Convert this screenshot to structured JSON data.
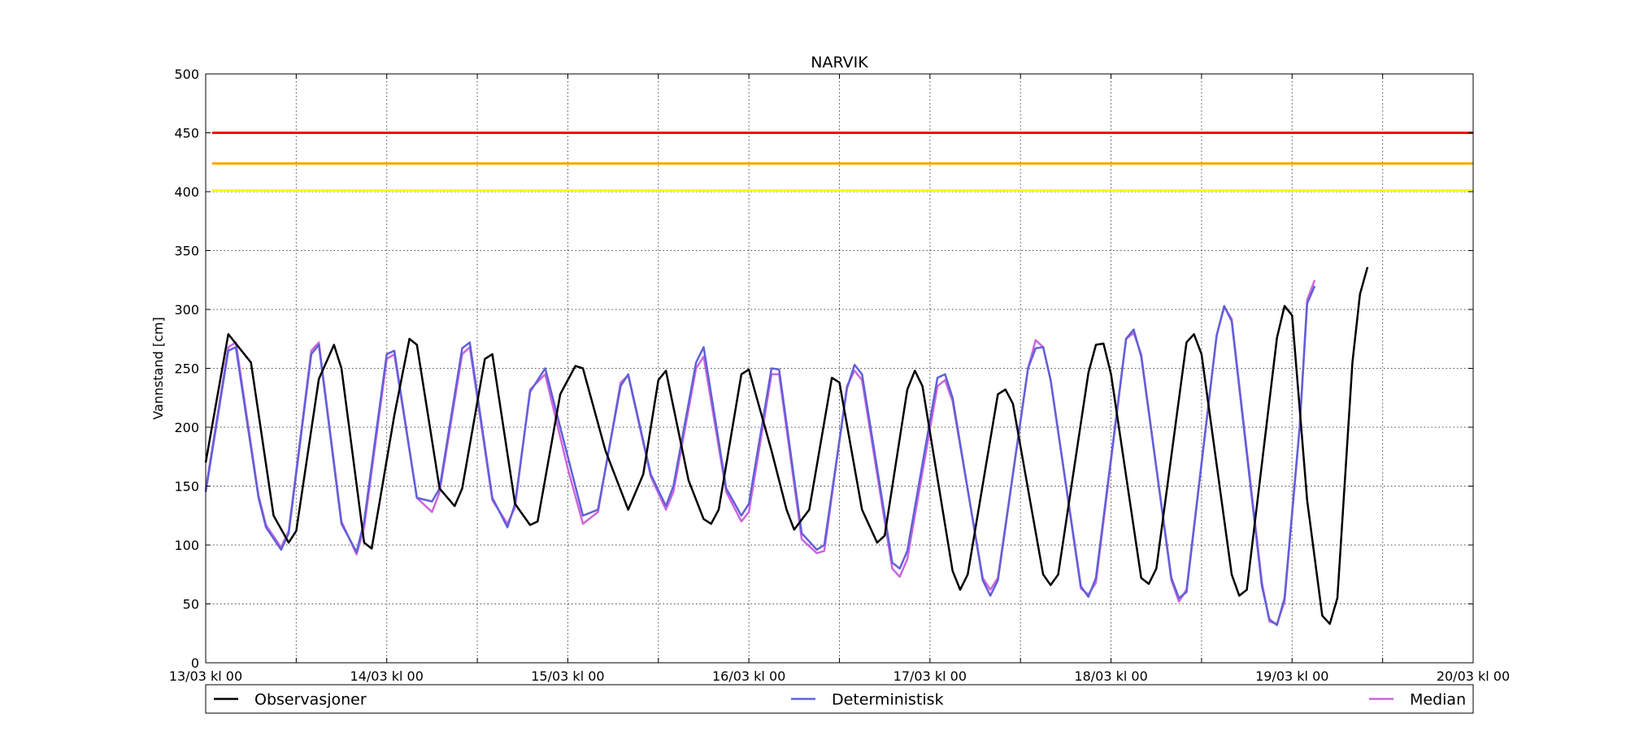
{
  "chart_data": {
    "type": "line",
    "title": "NARVIK",
    "ylabel": "Vannstand [cm]",
    "xlabel": "",
    "xlim": [
      "13/03 00:00",
      "20/03 00:00"
    ],
    "ylim": [
      0,
      500
    ],
    "yticks": [
      0,
      50,
      100,
      150,
      200,
      250,
      300,
      350,
      400,
      450,
      500
    ],
    "xtick_labels": [
      "13/03 kl 00",
      "14/03 kl 00",
      "15/03 kl 00",
      "16/03 kl 00",
      "17/03 kl 00",
      "18/03 kl 00",
      "19/03 kl 00",
      "20/03 kl 00"
    ],
    "grid": true,
    "legend_position": "bottom",
    "thresholds": [
      {
        "value": 450,
        "color": "#ff0000"
      },
      {
        "value": 424,
        "color": "#ffa500"
      },
      {
        "value": 401,
        "color": "#ffff00"
      }
    ],
    "series": [
      {
        "name": "Observasjoner",
        "color": "#000000",
        "points": [
          [
            "13/03 00:00",
            170
          ],
          [
            "13/03 03:00",
            279
          ],
          [
            "13/03 06:00",
            255
          ],
          [
            "13/03 09:00",
            125
          ],
          [
            "13/03 11:00",
            102
          ],
          [
            "13/03 12:00",
            112
          ],
          [
            "13/03 15:00",
            241
          ],
          [
            "13/03 17:00",
            270
          ],
          [
            "13/03 18:00",
            250
          ],
          [
            "13/03 21:00",
            102
          ],
          [
            "13/03 22:00",
            97
          ],
          [
            "14/03 01:00",
            210
          ],
          [
            "14/03 03:00",
            275
          ],
          [
            "14/03 04:00",
            270
          ],
          [
            "14/03 07:00",
            148
          ],
          [
            "14/03 09:00",
            133
          ],
          [
            "14/03 10:00",
            148
          ],
          [
            "14/03 13:00",
            258
          ],
          [
            "14/03 14:00",
            262
          ],
          [
            "14/03 17:00",
            135
          ],
          [
            "14/03 19:00",
            117
          ],
          [
            "14/03 20:00",
            120
          ],
          [
            "14/03 23:00",
            228
          ],
          [
            "15/03 01:00",
            252
          ],
          [
            "15/03 02:00",
            250
          ],
          [
            "15/03 05:00",
            180
          ],
          [
            "15/03 08:00",
            130
          ],
          [
            "15/03 10:00",
            160
          ],
          [
            "15/03 12:00",
            240
          ],
          [
            "15/03 13:00",
            248
          ],
          [
            "15/03 16:00",
            155
          ],
          [
            "15/03 18:00",
            122
          ],
          [
            "15/03 19:00",
            118
          ],
          [
            "15/03 20:00",
            130
          ],
          [
            "15/03 23:00",
            245
          ],
          [
            "16/03 00:00",
            249
          ],
          [
            "16/03 03:00",
            180
          ],
          [
            "16/03 05:00",
            130
          ],
          [
            "16/03 06:00",
            113
          ],
          [
            "16/03 08:00",
            130
          ],
          [
            "16/03 11:00",
            242
          ],
          [
            "16/03 12:00",
            238
          ],
          [
            "16/03 15:00",
            130
          ],
          [
            "16/03 17:00",
            102
          ],
          [
            "16/03 18:00",
            108
          ],
          [
            "16/03 21:00",
            232
          ],
          [
            "16/03 22:00",
            248
          ],
          [
            "16/03 23:00",
            235
          ],
          [
            "17/03 03:00",
            78
          ],
          [
            "17/03 04:00",
            62
          ],
          [
            "17/03 05:00",
            75
          ],
          [
            "17/03 09:00",
            228
          ],
          [
            "17/03 10:00",
            232
          ],
          [
            "17/03 11:00",
            220
          ],
          [
            "17/03 15:00",
            75
          ],
          [
            "17/03 16:00",
            66
          ],
          [
            "17/03 17:00",
            75
          ],
          [
            "17/03 21:00",
            246
          ],
          [
            "17/03 22:00",
            270
          ],
          [
            "17/03 23:00",
            271
          ],
          [
            "18/03 00:00",
            245
          ],
          [
            "18/03 04:00",
            72
          ],
          [
            "18/03 05:00",
            67
          ],
          [
            "18/03 06:00",
            80
          ],
          [
            "18/03 10:00",
            272
          ],
          [
            "18/03 11:00",
            279
          ],
          [
            "18/03 12:00",
            262
          ],
          [
            "18/03 16:00",
            75
          ],
          [
            "18/03 17:00",
            57
          ],
          [
            "18/03 18:00",
            62
          ],
          [
            "18/03 22:00",
            276
          ],
          [
            "18/03 23:00",
            303
          ],
          [
            "19/03 00:00",
            295
          ],
          [
            "19/03 02:00",
            138
          ],
          [
            "19/03 04:00",
            40
          ],
          [
            "19/03 05:00",
            33
          ],
          [
            "19/03 06:00",
            55
          ],
          [
            "19/03 08:00",
            255
          ],
          [
            "19/03 09:00",
            313
          ],
          [
            "19/03 10:00",
            336
          ]
        ]
      },
      {
        "name": "Deterministisk",
        "color": "#6060d8",
        "points": [
          [
            "13/03 00:00",
            145
          ],
          [
            "13/03 03:00",
            265
          ],
          [
            "13/03 04:00",
            268
          ],
          [
            "13/03 07:00",
            140
          ],
          [
            "13/03 08:00",
            115
          ],
          [
            "13/03 10:00",
            96
          ],
          [
            "13/03 11:00",
            110
          ],
          [
            "13/03 14:00",
            262
          ],
          [
            "13/03 15:00",
            270
          ],
          [
            "13/03 18:00",
            118
          ],
          [
            "13/03 20:00",
            94
          ],
          [
            "13/03 21:00",
            120
          ],
          [
            "14/03 00:00",
            262
          ],
          [
            "14/03 01:00",
            265
          ],
          [
            "14/03 04:00",
            140
          ],
          [
            "14/03 06:00",
            137
          ],
          [
            "14/03 07:00",
            148
          ],
          [
            "14/03 10:00",
            267
          ],
          [
            "14/03 11:00",
            272
          ],
          [
            "14/03 14:00",
            140
          ],
          [
            "14/03 16:00",
            115
          ],
          [
            "14/03 17:00",
            135
          ],
          [
            "14/03 19:00",
            230
          ],
          [
            "14/03 21:00",
            250
          ],
          [
            "15/03 00:00",
            175
          ],
          [
            "15/03 02:00",
            125
          ],
          [
            "15/03 04:00",
            130
          ],
          [
            "15/03 07:00",
            235
          ],
          [
            "15/03 08:00",
            245
          ],
          [
            "15/03 11:00",
            160
          ],
          [
            "15/03 13:00",
            133
          ],
          [
            "15/03 14:00",
            150
          ],
          [
            "15/03 17:00",
            255
          ],
          [
            "15/03 18:00",
            268
          ],
          [
            "15/03 21:00",
            148
          ],
          [
            "15/03 23:00",
            125
          ],
          [
            "16/03 00:00",
            135
          ],
          [
            "16/03 03:00",
            250
          ],
          [
            "16/03 04:00",
            249
          ],
          [
            "16/03 07:00",
            110
          ],
          [
            "16/03 09:00",
            96
          ],
          [
            "16/03 10:00",
            100
          ],
          [
            "16/03 13:00",
            233
          ],
          [
            "16/03 14:00",
            253
          ],
          [
            "16/03 15:00",
            245
          ],
          [
            "16/03 19:00",
            85
          ],
          [
            "16/03 20:00",
            80
          ],
          [
            "16/03 21:00",
            95
          ],
          [
            "17/03 01:00",
            242
          ],
          [
            "17/03 02:00",
            245
          ],
          [
            "17/03 03:00",
            225
          ],
          [
            "17/03 07:00",
            70
          ],
          [
            "17/03 08:00",
            57
          ],
          [
            "17/03 09:00",
            70
          ],
          [
            "17/03 13:00",
            250
          ],
          [
            "17/03 14:00",
            267
          ],
          [
            "17/03 15:00",
            268
          ],
          [
            "17/03 16:00",
            240
          ],
          [
            "17/03 20:00",
            65
          ],
          [
            "17/03 21:00",
            56
          ],
          [
            "17/03 22:00",
            72
          ],
          [
            "18/03 02:00",
            275
          ],
          [
            "18/03 03:00",
            283
          ],
          [
            "18/03 04:00",
            260
          ],
          [
            "18/03 08:00",
            72
          ],
          [
            "18/03 09:00",
            55
          ],
          [
            "18/03 10:00",
            60
          ],
          [
            "18/03 14:00",
            278
          ],
          [
            "18/03 15:00",
            303
          ],
          [
            "18/03 16:00",
            290
          ],
          [
            "18/03 20:00",
            65
          ],
          [
            "18/03 21:00",
            37
          ],
          [
            "18/03 22:00",
            32
          ],
          [
            "18/03 23:00",
            55
          ],
          [
            "19/03 01:00",
            200
          ],
          [
            "19/03 02:00",
            305
          ],
          [
            "19/03 03:00",
            320
          ]
        ]
      },
      {
        "name": "Median",
        "color": "#cc66dd",
        "points": [
          [
            "13/03 00:00",
            147
          ],
          [
            "13/03 03:00",
            268
          ],
          [
            "13/03 04:00",
            272
          ],
          [
            "13/03 07:00",
            142
          ],
          [
            "13/03 08:00",
            117
          ],
          [
            "13/03 10:00",
            98
          ],
          [
            "13/03 11:00",
            112
          ],
          [
            "13/03 14:00",
            265
          ],
          [
            "13/03 15:00",
            272
          ],
          [
            "13/03 18:00",
            120
          ],
          [
            "13/03 20:00",
            92
          ],
          [
            "13/03 21:00",
            115
          ],
          [
            "14/03 00:00",
            258
          ],
          [
            "14/03 01:00",
            262
          ],
          [
            "14/03 04:00",
            140
          ],
          [
            "14/03 06:00",
            128
          ],
          [
            "14/03 07:00",
            145
          ],
          [
            "14/03 10:00",
            262
          ],
          [
            "14/03 11:00",
            268
          ],
          [
            "14/03 14:00",
            138
          ],
          [
            "14/03 16:00",
            118
          ],
          [
            "14/03 17:00",
            132
          ],
          [
            "14/03 19:00",
            232
          ],
          [
            "14/03 21:00",
            245
          ],
          [
            "15/03 00:00",
            165
          ],
          [
            "15/03 02:00",
            118
          ],
          [
            "15/03 04:00",
            128
          ],
          [
            "15/03 07:00",
            238
          ],
          [
            "15/03 08:00",
            244
          ],
          [
            "15/03 11:00",
            158
          ],
          [
            "15/03 13:00",
            130
          ],
          [
            "15/03 14:00",
            145
          ],
          [
            "15/03 17:00",
            250
          ],
          [
            "15/03 18:00",
            260
          ],
          [
            "15/03 21:00",
            145
          ],
          [
            "15/03 23:00",
            120
          ],
          [
            "16/03 00:00",
            128
          ],
          [
            "16/03 03:00",
            245
          ],
          [
            "16/03 04:00",
            245
          ],
          [
            "16/03 07:00",
            105
          ],
          [
            "16/03 09:00",
            93
          ],
          [
            "16/03 10:00",
            95
          ],
          [
            "16/03 13:00",
            235
          ],
          [
            "16/03 14:00",
            248
          ],
          [
            "16/03 15:00",
            240
          ],
          [
            "16/03 19:00",
            80
          ],
          [
            "16/03 20:00",
            73
          ],
          [
            "16/03 21:00",
            88
          ],
          [
            "17/03 01:00",
            235
          ],
          [
            "17/03 02:00",
            240
          ],
          [
            "17/03 03:00",
            222
          ],
          [
            "17/03 07:00",
            72
          ],
          [
            "17/03 08:00",
            62
          ],
          [
            "17/03 09:00",
            72
          ],
          [
            "17/03 13:00",
            250
          ],
          [
            "17/03 14:00",
            274
          ],
          [
            "17/03 15:00",
            268
          ],
          [
            "17/03 16:00",
            240
          ],
          [
            "17/03 20:00",
            63
          ],
          [
            "17/03 21:00",
            58
          ],
          [
            "17/03 22:00",
            68
          ],
          [
            "18/03 02:00",
            275
          ],
          [
            "18/03 03:00",
            280
          ],
          [
            "18/03 04:00",
            262
          ],
          [
            "18/03 08:00",
            70
          ],
          [
            "18/03 09:00",
            52
          ],
          [
            "18/03 10:00",
            62
          ],
          [
            "18/03 14:00",
            278
          ],
          [
            "18/03 15:00",
            302
          ],
          [
            "18/03 16:00",
            292
          ],
          [
            "18/03 20:00",
            68
          ],
          [
            "18/03 21:00",
            35
          ],
          [
            "18/03 22:00",
            33
          ],
          [
            "18/03 23:00",
            52
          ],
          [
            "19/03 01:00",
            200
          ],
          [
            "19/03 02:00",
            308
          ],
          [
            "19/03 03:00",
            325
          ]
        ]
      }
    ]
  }
}
